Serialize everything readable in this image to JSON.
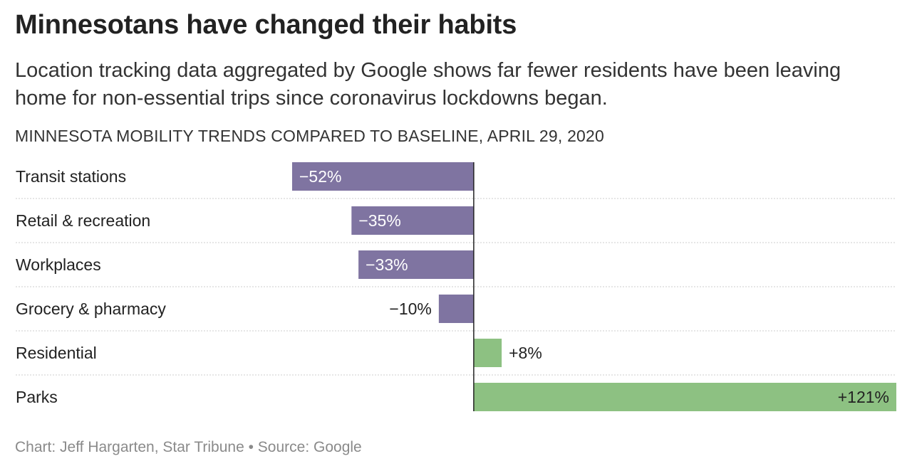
{
  "header": {
    "title": "Minnesotans have changed their habits",
    "subtitle": "Location tracking data aggregated by Google shows far fewer residents have been leaving home for non-essential trips since coronavirus lockdowns began."
  },
  "footer": {
    "source": "Chart: Jeff Hargarten, Star Tribune • Source: Google"
  },
  "chart_data": {
    "type": "bar",
    "orientation": "horizontal",
    "title": "MINNESOTA MOBILITY TRENDS COMPARED TO BASELINE, APRIL 29, 2020",
    "categories": [
      "Transit stations",
      "Retail & recreation",
      "Workplaces",
      "Grocery & pharmacy",
      "Residential",
      "Parks"
    ],
    "values": [
      -52,
      -35,
      -33,
      -10,
      8,
      121
    ],
    "value_labels": [
      "−52%",
      "−35%",
      "−33%",
      "−10%",
      "+8%",
      "+121%"
    ],
    "xlim": [
      -52,
      121
    ],
    "grid": false,
    "colors": {
      "negative": "#7f74a1",
      "positive": "#8dc182",
      "baseline": "#222222",
      "separator": "#cccccc"
    }
  }
}
